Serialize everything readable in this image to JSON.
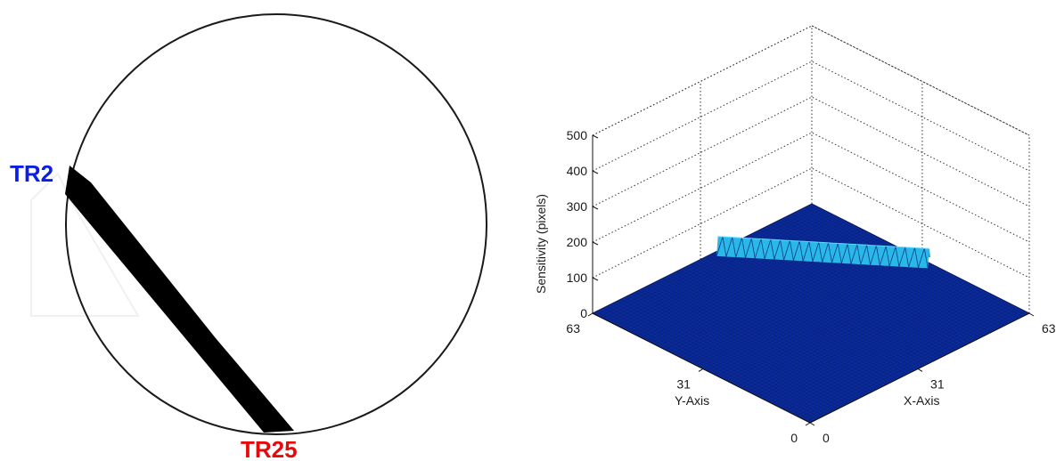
{
  "electrode_diagram": {
    "labels": [
      {
        "id": "tr2",
        "text": "TR2",
        "color": "#0a1ee6"
      },
      {
        "id": "tr25",
        "text": "TR25",
        "color": "#e60a0a"
      }
    ],
    "boundary_color": "#1a1a1a",
    "beam_color": "#000000"
  },
  "chart_data": {
    "type": "surface",
    "title": "",
    "zlabel": "Sensitivity (pixels)",
    "xlabel": "X-Axis",
    "ylabel": "Y-Axis",
    "zlim": [
      0,
      500
    ],
    "z_ticks": [
      "500",
      "400",
      "300",
      "200",
      "100",
      "0"
    ],
    "x_ticks": [
      "0",
      "31",
      "63"
    ],
    "y_ticks": [
      "0",
      "31",
      "63"
    ],
    "grid": true,
    "surface_color": "#0b2a9a",
    "ridge_color": "#29b8e8",
    "ridge_peak": 40,
    "ridge_path": [
      [
        36,
        63
      ],
      [
        63,
        29
      ]
    ]
  }
}
